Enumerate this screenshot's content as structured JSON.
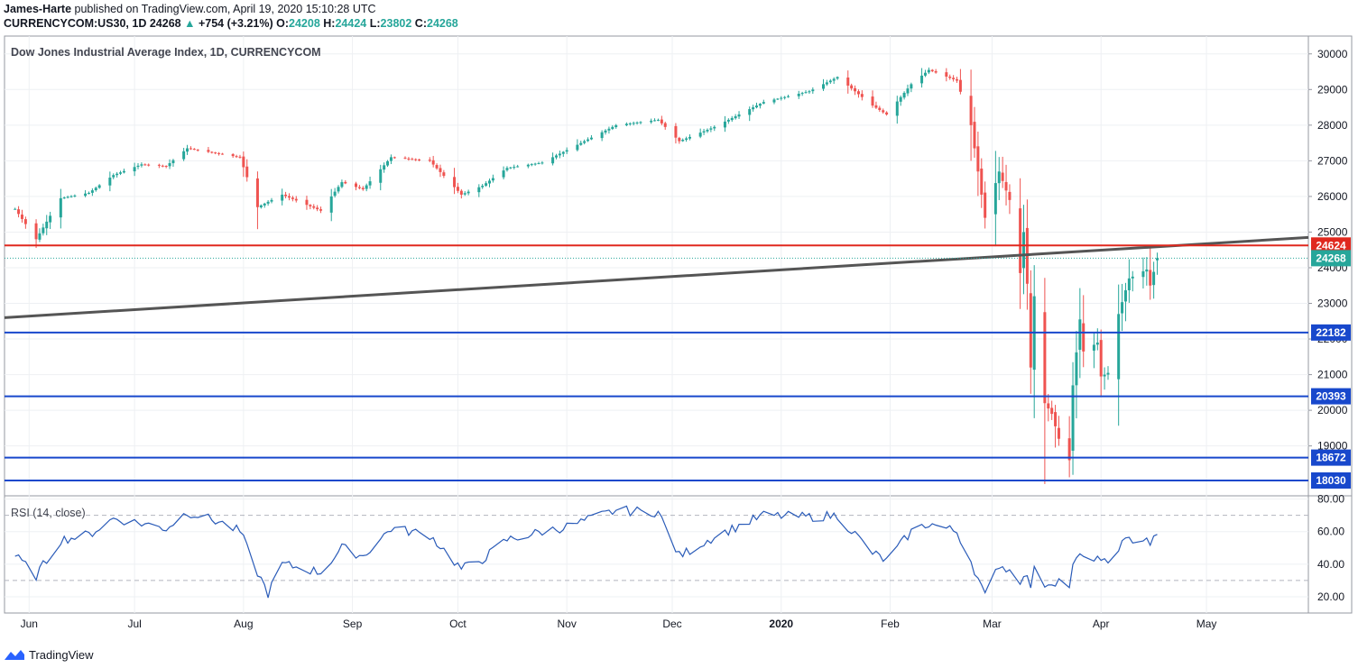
{
  "header": {
    "author": "James-Harte",
    "published": "published on TradingView.com, April 19, 2020 15:10:28 UTC",
    "symbol": "CURRENCYCOM:US30, 1D",
    "last": "24268",
    "arrow": "▲",
    "change": "+754 (+3.21%)",
    "o_label": "O:",
    "o_value": "24208",
    "h_label": "H:",
    "h_value": "24424",
    "l_label": "L:",
    "l_value": "23802",
    "c_label": "C:",
    "c_value": "24268"
  },
  "footer": {
    "brand": "TradingView"
  },
  "colors": {
    "up": "#26a69a",
    "down": "#ef5350",
    "support": "#1848cc",
    "resistance": "#e0281e",
    "trend": "#555555",
    "rsi": "#2a5bb8",
    "grid": "#eef0f3"
  },
  "chart_data": [
    {
      "type": "candlestick",
      "title": "Dow Jones Industrial Average Index, 1D, CURRENCYCOM",
      "y_ticks": [
        19000,
        20000,
        21000,
        22000,
        23000,
        24000,
        25000,
        26000,
        27000,
        28000,
        29000,
        30000
      ],
      "y_tick_labels": [
        "19000",
        "20000",
        "21000",
        "22000",
        "23000",
        "24000",
        "25000",
        "26000",
        "27000",
        "28000",
        "29000",
        "30000"
      ],
      "ylim": [
        17600,
        30500
      ],
      "x_tick_labels": [
        "Jun",
        "Jul",
        "Aug",
        "Sep",
        "Oct",
        "Nov",
        "Dec",
        "2020",
        "Feb",
        "Mar",
        "Apr",
        "May"
      ],
      "x_tick_dates": [
        "2019-06-01",
        "2019-07-01",
        "2019-08-01",
        "2019-09-01",
        "2019-10-01",
        "2019-11-01",
        "2019-12-01",
        "2020-01-01",
        "2020-02-01",
        "2020-03-01",
        "2020-04-01",
        "2020-05-01"
      ],
      "xlim": [
        "2019-05-25",
        "2020-05-30"
      ],
      "keypoints": [
        [
          "2019-05-28",
          25650
        ],
        [
          "2019-06-03",
          24800
        ],
        [
          "2019-06-10",
          25950
        ],
        [
          "2019-06-18",
          26100
        ],
        [
          "2019-06-25",
          26600
        ],
        [
          "2019-07-03",
          26900
        ],
        [
          "2019-07-10",
          26850
        ],
        [
          "2019-07-16",
          27350
        ],
        [
          "2019-07-25",
          27200
        ],
        [
          "2019-07-31",
          27100
        ],
        [
          "2019-08-05",
          25700
        ],
        [
          "2019-08-12",
          26050
        ],
        [
          "2019-08-23",
          25600
        ],
        [
          "2019-08-29",
          26400
        ],
        [
          "2019-09-04",
          26200
        ],
        [
          "2019-09-12",
          27100
        ],
        [
          "2019-09-23",
          27000
        ],
        [
          "2019-10-02",
          26050
        ],
        [
          "2019-10-08",
          26300
        ],
        [
          "2019-10-15",
          26800
        ],
        [
          "2019-10-25",
          26950
        ],
        [
          "2019-11-01",
          27300
        ],
        [
          "2019-11-15",
          28000
        ],
        [
          "2019-11-27",
          28150
        ],
        [
          "2019-12-03",
          27550
        ],
        [
          "2019-12-13",
          27950
        ],
        [
          "2019-12-27",
          28650
        ],
        [
          "2020-01-09",
          28950
        ],
        [
          "2020-01-17",
          29350
        ],
        [
          "2020-01-27",
          28550
        ],
        [
          "2020-01-31",
          28300
        ],
        [
          "2020-02-07",
          29150
        ],
        [
          "2020-02-12",
          29550
        ],
        [
          "2020-02-20",
          29250
        ],
        [
          "2020-02-24",
          28000
        ],
        [
          "2020-02-28",
          25400
        ],
        [
          "2020-03-03",
          26700
        ],
        [
          "2020-03-06",
          25900
        ],
        [
          "2020-03-09",
          23850
        ],
        [
          "2020-03-10",
          25000
        ],
        [
          "2020-03-11",
          23550
        ],
        [
          "2020-03-12",
          21200
        ],
        [
          "2020-03-13",
          23200
        ],
        [
          "2020-03-16",
          20200
        ],
        [
          "2020-03-18",
          19900
        ],
        [
          "2020-03-20",
          19200
        ],
        [
          "2020-03-23",
          18600
        ],
        [
          "2020-03-24",
          20700
        ],
        [
          "2020-03-26",
          22550
        ],
        [
          "2020-03-27",
          21650
        ],
        [
          "2020-03-31",
          21900
        ],
        [
          "2020-04-01",
          20950
        ],
        [
          "2020-04-03",
          21050
        ],
        [
          "2020-04-06",
          22700
        ],
        [
          "2020-04-09",
          23700
        ],
        [
          "2020-04-14",
          23950
        ],
        [
          "2020-04-15",
          23500
        ],
        [
          "2020-04-17",
          24268
        ]
      ],
      "last_bar": {
        "date": "2020-04-17",
        "open": 24208,
        "high": 24424,
        "low": 23802,
        "close": 24268
      },
      "horizontal_levels": [
        {
          "value": 24624,
          "label": "24624",
          "kind": "resistance"
        },
        {
          "value": 22182,
          "label": "22182",
          "kind": "support"
        },
        {
          "value": 20393,
          "label": "20393",
          "kind": "support"
        },
        {
          "value": 18672,
          "label": "18672",
          "kind": "support"
        },
        {
          "value": 18030,
          "label": "18030",
          "kind": "support"
        }
      ],
      "trend_line": {
        "from": [
          "2019-05-25",
          22600
        ],
        "to": [
          "2020-05-30",
          24850
        ]
      },
      "last_price_line": {
        "value": 24268,
        "label": "24268"
      }
    },
    {
      "type": "line",
      "title": "RSI (14, close)",
      "ylim": [
        10,
        82
      ],
      "y_ticks": [
        20,
        40,
        60,
        80
      ],
      "y_tick_labels": [
        "20.00",
        "40.00",
        "60.00",
        "80.00"
      ],
      "bands": [
        30,
        70
      ],
      "keypoints": [
        [
          "2019-05-28",
          45
        ],
        [
          "2019-06-03",
          33
        ],
        [
          "2019-06-10",
          55
        ],
        [
          "2019-06-18",
          58
        ],
        [
          "2019-06-25",
          68
        ],
        [
          "2019-07-03",
          65
        ],
        [
          "2019-07-10",
          62
        ],
        [
          "2019-07-16",
          72
        ],
        [
          "2019-07-25",
          66
        ],
        [
          "2019-07-31",
          60
        ],
        [
          "2019-08-05",
          35
        ],
        [
          "2019-08-08",
          22
        ],
        [
          "2019-08-12",
          40
        ],
        [
          "2019-08-23",
          35
        ],
        [
          "2019-08-29",
          50
        ],
        [
          "2019-09-04",
          45
        ],
        [
          "2019-09-12",
          62
        ],
        [
          "2019-09-23",
          58
        ],
        [
          "2019-10-02",
          37
        ],
        [
          "2019-10-08",
          43
        ],
        [
          "2019-10-15",
          55
        ],
        [
          "2019-10-25",
          60
        ],
        [
          "2019-11-01",
          63
        ],
        [
          "2019-11-15",
          73
        ],
        [
          "2019-11-27",
          72
        ],
        [
          "2019-12-03",
          45
        ],
        [
          "2019-12-13",
          57
        ],
        [
          "2019-12-27",
          70
        ],
        [
          "2020-01-09",
          69
        ],
        [
          "2020-01-17",
          70
        ],
        [
          "2020-01-27",
          47
        ],
        [
          "2020-01-31",
          42
        ],
        [
          "2020-02-07",
          60
        ],
        [
          "2020-02-12",
          65
        ],
        [
          "2020-02-20",
          60
        ],
        [
          "2020-02-24",
          42
        ],
        [
          "2020-02-28",
          20
        ],
        [
          "2020-03-03",
          40
        ],
        [
          "2020-03-06",
          36
        ],
        [
          "2020-03-09",
          30
        ],
        [
          "2020-03-10",
          35
        ],
        [
          "2020-03-12",
          27
        ],
        [
          "2020-03-13",
          36
        ],
        [
          "2020-03-16",
          28
        ],
        [
          "2020-03-20",
          30
        ],
        [
          "2020-03-23",
          27
        ],
        [
          "2020-03-24",
          38
        ],
        [
          "2020-03-26",
          46
        ],
        [
          "2020-03-27",
          42
        ],
        [
          "2020-03-31",
          45
        ],
        [
          "2020-04-01",
          40
        ],
        [
          "2020-04-03",
          41
        ],
        [
          "2020-04-06",
          51
        ],
        [
          "2020-04-09",
          55
        ],
        [
          "2020-04-14",
          56
        ],
        [
          "2020-04-15",
          53
        ],
        [
          "2020-04-17",
          57
        ]
      ]
    }
  ]
}
